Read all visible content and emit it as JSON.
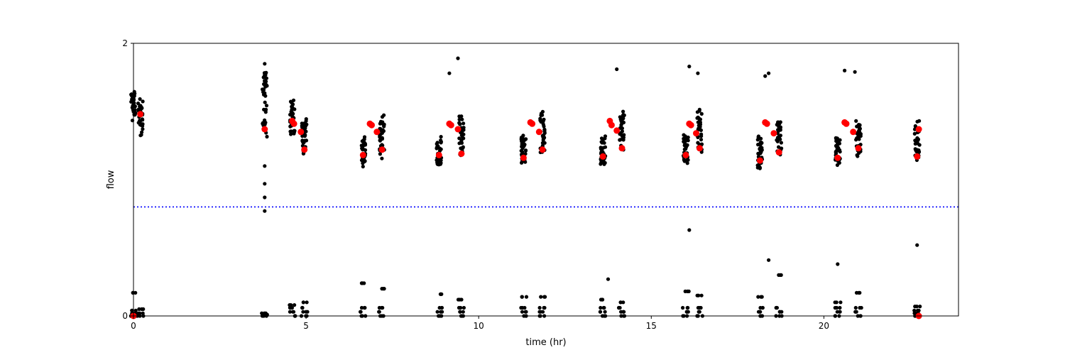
{
  "chart_data": {
    "type": "scatter",
    "title": "",
    "xlabel": "time (hr)",
    "ylabel": "flow",
    "xlim": [
      0,
      23.9
    ],
    "ylim": [
      0,
      2
    ],
    "xticks": [
      0,
      5,
      10,
      15,
      20
    ],
    "yticks": [
      0,
      2
    ],
    "grid": false,
    "legend": null,
    "threshold_line": {
      "y": 0.8,
      "color": "#0000ff",
      "style": "dotted"
    },
    "series": [
      {
        "role": "raw",
        "color": "#000000",
        "clusters": [
          {
            "x": 0.0,
            "y_min": 1.4,
            "y_max": 1.68,
            "low": [
              0.0,
              0.02,
              0.04,
              0.17
            ]
          },
          {
            "x": 0.2,
            "y_min": 1.28,
            "y_max": 1.66,
            "low": [
              0.0,
              0.02,
              0.05
            ]
          },
          {
            "x": 3.8,
            "y_min": 1.26,
            "y_max": 1.85,
            "low": [
              0.0,
              0.01,
              0.02
            ]
          },
          {
            "x": 4.6,
            "y_min": 1.3,
            "y_max": 1.62,
            "low": [
              0.0,
              0.03,
              0.06,
              0.08
            ]
          },
          {
            "x": 4.95,
            "y_min": 1.14,
            "y_max": 1.5,
            "low": [
              0.0,
              0.03,
              0.06,
              0.1
            ]
          },
          {
            "x": 6.65,
            "y_min": 1.06,
            "y_max": 1.34,
            "low": [
              0.0,
              0.03,
              0.06,
              0.24
            ]
          },
          {
            "x": 7.2,
            "y_min": 1.12,
            "y_max": 1.54,
            "low": [
              0.0,
              0.03,
              0.06,
              0.2
            ]
          },
          {
            "x": 8.85,
            "y_min": 1.06,
            "y_max": 1.36,
            "low": [
              0.0,
              0.03,
              0.06,
              0.16
            ]
          },
          {
            "x": 9.5,
            "y_min": 1.12,
            "y_max": 1.53,
            "low": [
              0.0,
              0.03,
              0.06,
              0.12
            ]
          },
          {
            "x": 11.3,
            "y_min": 1.08,
            "y_max": 1.36,
            "low": [
              0.0,
              0.03,
              0.06,
              0.14
            ]
          },
          {
            "x": 11.85,
            "y_min": 1.14,
            "y_max": 1.56,
            "low": [
              0.0,
              0.03,
              0.06,
              0.14
            ]
          },
          {
            "x": 13.6,
            "y_min": 1.06,
            "y_max": 1.36,
            "low": [
              0.0,
              0.03,
              0.06,
              0.12
            ]
          },
          {
            "x": 14.15,
            "y_min": 1.14,
            "y_max": 1.56,
            "low": [
              0.0,
              0.03,
              0.06,
              0.1
            ]
          },
          {
            "x": 16.0,
            "y_min": 1.08,
            "y_max": 1.38,
            "low": [
              0.0,
              0.03,
              0.06,
              0.18
            ]
          },
          {
            "x": 16.4,
            "y_min": 1.14,
            "y_max": 1.56,
            "low": [
              0.0,
              0.03,
              0.06,
              0.15
            ]
          },
          {
            "x": 18.15,
            "y_min": 1.04,
            "y_max": 1.36,
            "low": [
              0.0,
              0.03,
              0.06,
              0.14
            ]
          },
          {
            "x": 18.7,
            "y_min": 1.14,
            "y_max": 1.48,
            "low": [
              0.0,
              0.03,
              0.06,
              0.3
            ]
          },
          {
            "x": 20.4,
            "y_min": 1.08,
            "y_max": 1.36,
            "low": [
              0.0,
              0.03,
              0.06,
              0.1
            ]
          },
          {
            "x": 21.0,
            "y_min": 1.14,
            "y_max": 1.48,
            "low": [
              0.0,
              0.03,
              0.06,
              0.17
            ]
          },
          {
            "x": 22.7,
            "y_min": 1.08,
            "y_max": 1.48,
            "low": [
              0.0,
              0.02,
              0.04,
              0.07
            ]
          }
        ],
        "outliers": [
          {
            "x": 3.8,
            "y": 1.85
          },
          {
            "x": 3.8,
            "y": 0.97
          },
          {
            "x": 3.8,
            "y": 0.87
          },
          {
            "x": 3.8,
            "y": 0.77
          },
          {
            "x": 3.8,
            "y": 1.1
          },
          {
            "x": 9.15,
            "y": 1.78
          },
          {
            "x": 9.4,
            "y": 1.89
          },
          {
            "x": 14.0,
            "y": 1.81
          },
          {
            "x": 16.1,
            "y": 1.83
          },
          {
            "x": 16.35,
            "y": 1.78
          },
          {
            "x": 16.1,
            "y": 0.63
          },
          {
            "x": 18.3,
            "y": 1.76
          },
          {
            "x": 18.4,
            "y": 1.78
          },
          {
            "x": 18.4,
            "y": 0.41
          },
          {
            "x": 20.6,
            "y": 1.8
          },
          {
            "x": 20.9,
            "y": 1.79
          },
          {
            "x": 20.4,
            "y": 0.38
          },
          {
            "x": 22.7,
            "y": 0.52
          },
          {
            "x": 13.75,
            "y": 0.27
          }
        ]
      },
      {
        "role": "mean",
        "color": "#ff0000",
        "x": [
          0.2,
          3.8,
          4.6,
          4.65,
          4.85,
          4.95,
          6.65,
          6.85,
          6.9,
          7.05,
          7.2,
          8.85,
          9.15,
          9.2,
          9.4,
          9.5,
          11.3,
          11.5,
          11.55,
          11.75,
          11.85,
          13.6,
          13.8,
          13.85,
          14.0,
          14.15,
          16.0,
          16.1,
          16.15,
          16.3,
          16.4,
          18.15,
          18.3,
          18.35,
          18.55,
          18.7,
          20.4,
          20.6,
          20.65,
          20.85,
          21.0,
          22.7,
          22.75,
          0.0,
          22.75
        ],
        "y": [
          1.48,
          1.37,
          1.43,
          1.41,
          1.35,
          1.22,
          1.18,
          1.41,
          1.4,
          1.35,
          1.22,
          1.18,
          1.41,
          1.4,
          1.37,
          1.19,
          1.16,
          1.42,
          1.41,
          1.35,
          1.22,
          1.17,
          1.43,
          1.4,
          1.36,
          1.23,
          1.18,
          1.41,
          1.4,
          1.34,
          1.23,
          1.14,
          1.42,
          1.41,
          1.34,
          1.2,
          1.16,
          1.42,
          1.41,
          1.35,
          1.23,
          1.17,
          1.37,
          0.0,
          0.0
        ]
      }
    ]
  }
}
